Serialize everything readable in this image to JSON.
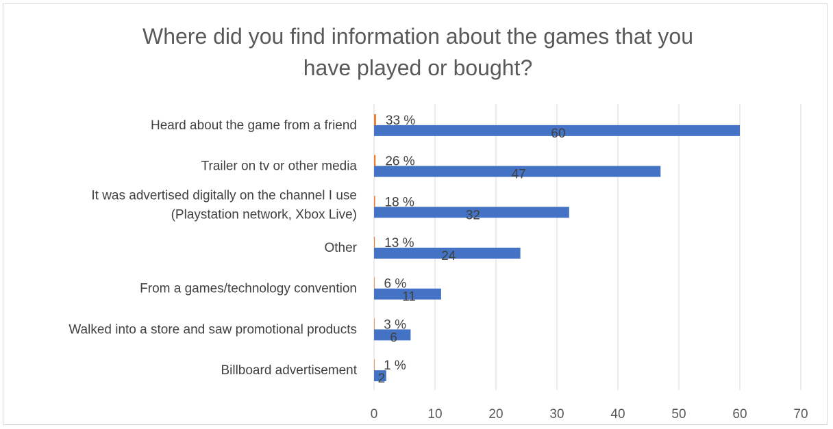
{
  "chart_data": {
    "type": "bar",
    "orientation": "horizontal",
    "title": [
      "Where did you find information about the games that you",
      "have played or bought?"
    ],
    "categories": [
      [
        "Heard about the game from a friend"
      ],
      [
        "Trailer on tv or other media"
      ],
      [
        "It was advertised digitally on the channel I use",
        "(Playstation network, Xbox Live)"
      ],
      [
        "Other"
      ],
      [
        "From a games/technology convention"
      ],
      [
        "Walked into a store and saw promotional products"
      ],
      [
        "Billboard advertisement"
      ]
    ],
    "series": [
      {
        "values": [
          0.33,
          0.26,
          0.18,
          0.13,
          0.06,
          0.03,
          0.01
        ],
        "labels": [
          "33 %",
          "26 %",
          "18 %",
          "13 %",
          "6 %",
          "3 %",
          "1 %"
        ],
        "color": "#ED7D31"
      },
      {
        "values": [
          60,
          47,
          32,
          24,
          11,
          6,
          2
        ],
        "labels": [
          "60",
          "47",
          "32",
          "24",
          "11",
          "6",
          "2"
        ],
        "color": "#4472C4"
      }
    ],
    "xlim": [
      0,
      70
    ],
    "xticks": [
      0,
      10,
      20,
      30,
      40,
      50,
      60,
      70
    ],
    "grid": true,
    "legend": "none"
  }
}
